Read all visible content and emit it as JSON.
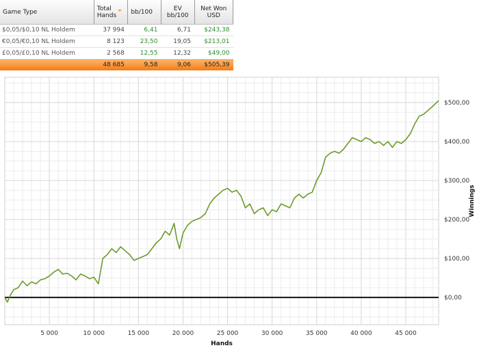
{
  "table": {
    "headers": [
      "Game Type",
      "Total Hands",
      "bb/100",
      "EV bb/100",
      "Net Won USD"
    ],
    "header_lines": [
      [
        "Game Type"
      ],
      [
        "Total",
        "Hands"
      ],
      [
        "bb/100"
      ],
      [
        "EV",
        "bb/100"
      ],
      [
        "Net Won",
        "USD"
      ]
    ],
    "rows": [
      {
        "game": "$0,05/$0,10 NL Holdem",
        "hands": "37 994",
        "bb": "6,41",
        "ev": "6,71",
        "net": "$243,38"
      },
      {
        "game": "€0,05/€0,10 NL Holdem",
        "hands": "8 123",
        "bb": "23,50",
        "ev": "19,05",
        "net": "$213,01"
      },
      {
        "game": "£0,05/£0,10 NL Holdem",
        "hands": "2 568",
        "bb": "12,55",
        "ev": "12,32",
        "net": "$49,00"
      }
    ],
    "total": {
      "game": "",
      "hands": "48 685",
      "bb": "9,58",
      "ev": "9,06",
      "net": "$505,39"
    }
  },
  "chart_data": {
    "type": "line",
    "xlabel": "Hands",
    "ylabel": "Winnings",
    "xlim": [
      0,
      48685
    ],
    "ylim": [
      -70,
      565
    ],
    "xticks": [
      5000,
      10000,
      15000,
      20000,
      25000,
      30000,
      35000,
      40000,
      45000
    ],
    "xtick_labels": [
      "5 000",
      "10 000",
      "15 000",
      "20 000",
      "25 000",
      "30 000",
      "35 000",
      "40 000",
      "45 000"
    ],
    "yticks": [
      0,
      100,
      200,
      300,
      400,
      500
    ],
    "ytick_labels": [
      "$0,00",
      "$100,00",
      "$200,00",
      "$300,00",
      "$400,00",
      "$500,00"
    ],
    "grid": true,
    "line_color": "#6a9a2a",
    "series": [
      {
        "name": "Winnings",
        "x": [
          0,
          300,
          600,
          1000,
          1500,
          2000,
          2500,
          3000,
          3500,
          4000,
          4500,
          5000,
          5500,
          6000,
          6500,
          7000,
          7500,
          8000,
          8500,
          9000,
          9500,
          10000,
          10500,
          11000,
          11500,
          12000,
          12500,
          13000,
          13500,
          14000,
          14500,
          15000,
          15500,
          16000,
          16500,
          17000,
          17500,
          18000,
          18500,
          19000,
          19300,
          19600,
          20000,
          20500,
          21000,
          21500,
          22000,
          22500,
          23000,
          23500,
          24000,
          24500,
          25000,
          25500,
          26000,
          26500,
          27000,
          27500,
          28000,
          28500,
          29000,
          29500,
          30000,
          30500,
          31000,
          31500,
          32000,
          32500,
          33000,
          33500,
          34000,
          34500,
          35000,
          35500,
          36000,
          36500,
          37000,
          37500,
          38000,
          38500,
          39000,
          39500,
          40000,
          40500,
          41000,
          41500,
          42000,
          42500,
          43000,
          43500,
          44000,
          44500,
          45000,
          45500,
          46000,
          46500,
          47000,
          47500,
          48000,
          48685
        ],
        "y": [
          0,
          -12,
          5,
          20,
          25,
          42,
          30,
          40,
          35,
          45,
          48,
          55,
          65,
          72,
          60,
          62,
          55,
          45,
          60,
          55,
          48,
          52,
          35,
          100,
          110,
          125,
          115,
          130,
          120,
          110,
          95,
          100,
          105,
          110,
          125,
          140,
          150,
          170,
          160,
          190,
          150,
          125,
          165,
          185,
          195,
          200,
          205,
          215,
          240,
          255,
          265,
          275,
          280,
          270,
          275,
          260,
          230,
          240,
          215,
          225,
          230,
          210,
          225,
          220,
          240,
          235,
          230,
          255,
          265,
          255,
          265,
          270,
          300,
          320,
          360,
          370,
          375,
          370,
          380,
          395,
          410,
          405,
          400,
          410,
          405,
          395,
          400,
          390,
          400,
          385,
          400,
          395,
          405,
          420,
          445,
          465,
          470,
          480,
          490,
          505
        ]
      }
    ]
  }
}
